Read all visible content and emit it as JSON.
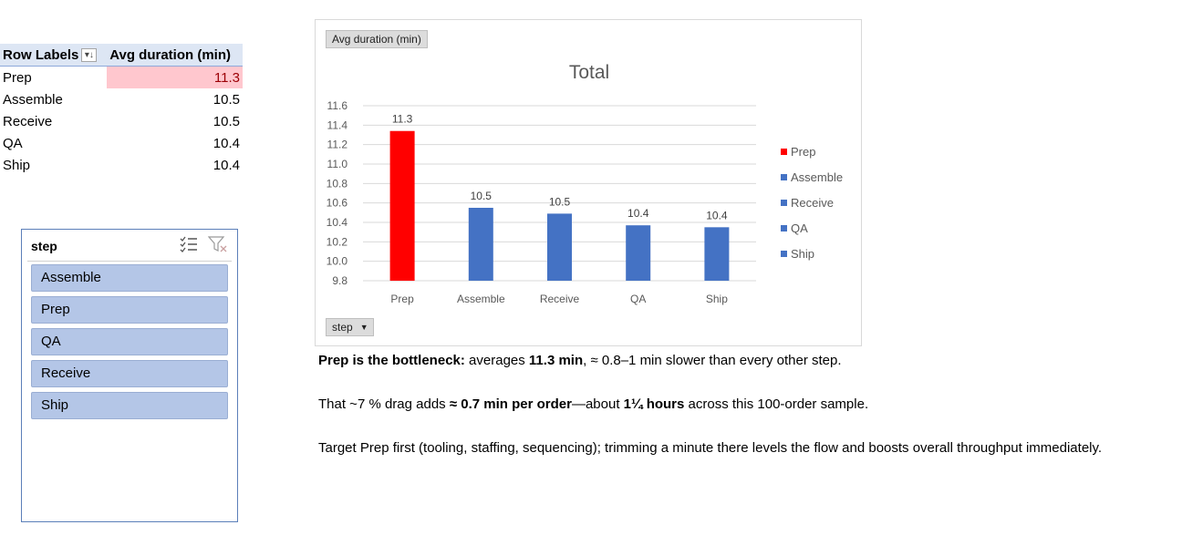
{
  "pivot": {
    "header_row_labels": "Row Labels",
    "header_value": "Avg duration (min)",
    "sort_icon": "sort-descending-icon",
    "rows": [
      {
        "label": "Prep",
        "value": "11.3"
      },
      {
        "label": "Assemble",
        "value": "10.5"
      },
      {
        "label": "Receive",
        "value": "10.5"
      },
      {
        "label": "QA",
        "value": "10.4"
      },
      {
        "label": "Ship",
        "value": "10.4"
      }
    ],
    "highlight_color": "#ffc7ce"
  },
  "slicer": {
    "title": "step",
    "icons": [
      "multi-select-icon",
      "clear-filter-icon"
    ],
    "items": [
      "Assemble",
      "Prep",
      "QA",
      "Receive",
      "Ship"
    ],
    "item_color": "#b4c6e7"
  },
  "chart_field_buttons": {
    "value_field": "Avg duration (min)",
    "axis_field": "step"
  },
  "chart_data": {
    "type": "bar",
    "title": "Total",
    "categories": [
      "Prep",
      "Assemble",
      "Receive",
      "QA",
      "Ship"
    ],
    "values": [
      11.34,
      10.55,
      10.49,
      10.37,
      10.35
    ],
    "data_labels": [
      "11.3",
      "10.5",
      "10.5",
      "10.4",
      "10.4"
    ],
    "colors": [
      "#ff0000",
      "#4472c4",
      "#4472c4",
      "#4472c4",
      "#4472c4"
    ],
    "ylim": [
      9.8,
      11.6
    ],
    "yticks": [
      "11.6",
      "11.4",
      "11.2",
      "11.0",
      "10.8",
      "10.6",
      "10.4",
      "10.2",
      "10.0",
      "9.8"
    ],
    "ytick_values": [
      11.6,
      11.4,
      11.2,
      11.0,
      10.8,
      10.6,
      10.4,
      10.2,
      10.0,
      9.8
    ],
    "grid": true,
    "legend_placement": "right",
    "legend": [
      "Prep",
      "Assemble",
      "Receive",
      "QA",
      "Ship"
    ],
    "xlabel": "",
    "ylabel": ""
  },
  "notes": {
    "p1_bold": "Prep is the bottleneck:",
    "p1_a": " averages ",
    "p1_b": "11.3 min",
    "p1_c": ", ≈ 0.8–1 min slower than every other step.",
    "p2_a": "That ~7 % drag adds ",
    "p2_b": "≈ 0.7 min per order",
    "p2_c": "—about ",
    "p2_d": "1¼ hours",
    "p2_e": " across this 100-order sample.",
    "p3": "Target Prep first (tooling, staffing, sequencing); trimming a minute there levels the flow and boosts overall throughput immediately."
  }
}
